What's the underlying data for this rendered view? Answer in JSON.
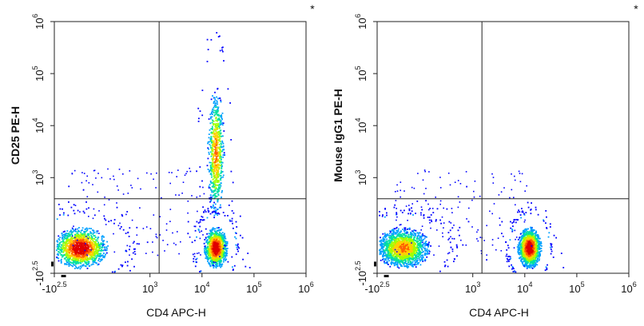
{
  "chart_data": [
    {
      "type": "scatter",
      "subtype": "flow-cytometry-density-dot-plot",
      "title": "",
      "corner_mark": "*",
      "xlabel": "CD4 APC-H",
      "ylabel": "CD25 PE-H",
      "x_scale": "biexponential",
      "y_scale": "biexponential",
      "xlim": [
        -316,
        1000000
      ],
      "ylim": [
        -316,
        1000000
      ],
      "x_ticks": [
        {
          "base": "-10",
          "exp": "2.5"
        },
        {
          "base": "10",
          "exp": "3"
        },
        {
          "base": "10",
          "exp": "4"
        },
        {
          "base": "10",
          "exp": "5"
        },
        {
          "base": "10",
          "exp": "6"
        }
      ],
      "y_ticks": [
        {
          "base": "-10",
          "exp": "2.5"
        },
        {
          "base": "10",
          "exp": "3"
        },
        {
          "base": "10",
          "exp": "4"
        },
        {
          "base": "10",
          "exp": "5"
        },
        {
          "base": "10",
          "exp": "6"
        }
      ],
      "quadrant_gate": {
        "x": 1500,
        "y": 700
      },
      "grid": false,
      "color_scale": [
        "#0000ff",
        "#00a0ff",
        "#00e0a0",
        "#a0ff00",
        "#ffd000",
        "#ff6000",
        "#e00000"
      ],
      "populations": [
        {
          "cd4": 5,
          "marker": 10,
          "events": 1500,
          "peak": "red"
        },
        {
          "cd4": 18000,
          "marker": 10,
          "events": 1100,
          "peak": "red"
        },
        {
          "cd4": 18000,
          "marker": 3000,
          "events": 700,
          "peak": "yellow"
        }
      ]
    },
    {
      "type": "scatter",
      "subtype": "flow-cytometry-density-dot-plot",
      "title": "",
      "corner_mark": "*",
      "xlabel": "CD4 APC-H",
      "ylabel": "Mouse IgG1 PE-H",
      "x_scale": "biexponential",
      "y_scale": "biexponential",
      "xlim": [
        -316,
        1000000
      ],
      "ylim": [
        -316,
        1000000
      ],
      "x_ticks": [
        {
          "base": "-10",
          "exp": "2.5"
        },
        {
          "base": "10",
          "exp": "3"
        },
        {
          "base": "10",
          "exp": "4"
        },
        {
          "base": "10",
          "exp": "5"
        },
        {
          "base": "10",
          "exp": "6"
        }
      ],
      "y_ticks": [
        {
          "base": "-10",
          "exp": "2.5"
        },
        {
          "base": "10",
          "exp": "3"
        },
        {
          "base": "10",
          "exp": "4"
        },
        {
          "base": "10",
          "exp": "5"
        },
        {
          "base": "10",
          "exp": "6"
        }
      ],
      "quadrant_gate": {
        "x": 1500,
        "y": 700
      },
      "grid": false,
      "color_scale": [
        "#0000ff",
        "#00a0ff",
        "#00e0a0",
        "#a0ff00",
        "#ffd000",
        "#ff6000",
        "#e00000"
      ],
      "populations": [
        {
          "cd4": 5,
          "marker": 10,
          "events": 1700,
          "peak": "yellow"
        },
        {
          "cd4": 12000,
          "marker": 10,
          "events": 1400,
          "peak": "red"
        }
      ]
    }
  ]
}
